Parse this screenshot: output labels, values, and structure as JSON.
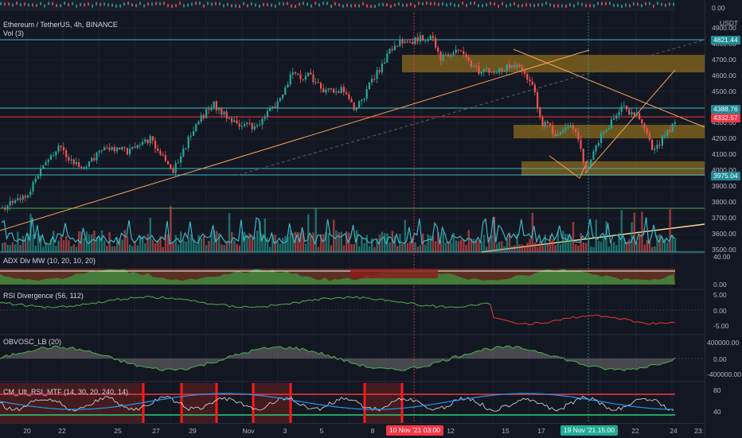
{
  "header": {
    "symbol_title": "Ethereum / TetherUS, 4h, BINANCE",
    "vol_label": "Vol (3)",
    "currency": "USDT"
  },
  "price_badges": {
    "resistance": "4821.44",
    "current_high": "4388.76",
    "last_price": "4332.57",
    "support": "3975.04"
  },
  "price_axis": {
    "top_value": "0.00",
    "ticks": [
      "4900.00",
      "4800.00",
      "4700.00",
      "4600.00",
      "4500.00",
      "4400.00",
      "4300.00",
      "4200.00",
      "4100.00",
      "4000.00",
      "3900.00",
      "3800.00",
      "3700.00",
      "3600.00",
      "3500.00"
    ]
  },
  "indicators": {
    "adx": {
      "label": "ADX Div MW (10, 20, 10, 20)",
      "axis": [
        "40.00",
        "0.00"
      ]
    },
    "rsi": {
      "label": "RSI Divergence (56, 112)",
      "axis": [
        "5.00",
        "0.00",
        "-5.00"
      ]
    },
    "obv": {
      "label": "OBVOSC_LB (20)",
      "axis": [
        "400000.00",
        "0.00",
        "-400000.00"
      ]
    },
    "cm": {
      "label": "CM_Ult_RSI_MTF (14, 30, 20, 240, 14)",
      "axis": [
        "80",
        "40"
      ]
    }
  },
  "time_axis": {
    "labels": [
      "20",
      "22",
      "25",
      "27",
      "29",
      "Nov",
      "3",
      "5",
      "8",
      "12",
      "15",
      "17",
      "22",
      "24",
      "23:"
    ],
    "badge_1": "10 Nov '21  03:00",
    "badge_2": "19 Nov '21  15:00"
  },
  "colors": {
    "background": "#131722",
    "bull": "#26a69a",
    "bear": "#ef5350",
    "zone": "#8a6a1e",
    "trendline": "#f0a25a",
    "cyan_line": "#3bb6c4",
    "red_badge": "#f23645",
    "green_badge": "#22ab94"
  }
}
